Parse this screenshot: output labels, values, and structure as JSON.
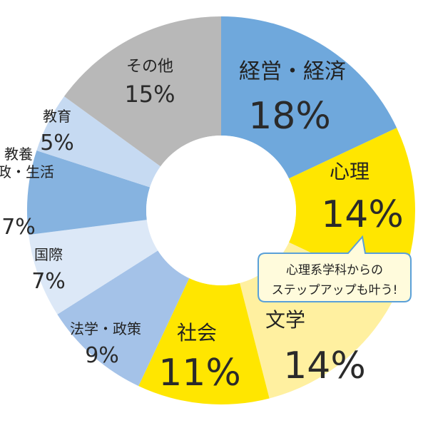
{
  "chart_data": {
    "type": "pie",
    "title": "",
    "start_angle_deg": 0,
    "direction": "clockwise",
    "unit": "%",
    "slices": [
      {
        "category": "経営・経済",
        "label_lines": [
          "経営・経済"
        ],
        "value": 18,
        "value_text": "18%",
        "color": "#6fa8dc"
      },
      {
        "category": "心理",
        "label_lines": [
          "心理"
        ],
        "value": 14,
        "value_text": "14%",
        "color": "#ffe600"
      },
      {
        "category": "文学",
        "label_lines": [
          "文学"
        ],
        "value": 14,
        "value_text": "14%",
        "color": "#fff0a0"
      },
      {
        "category": "社会",
        "label_lines": [
          "社会"
        ],
        "value": 11,
        "value_text": "11%",
        "color": "#ffe600"
      },
      {
        "category": "法学・政策",
        "label_lines": [
          "法学・政策"
        ],
        "value": 9,
        "value_text": "9%",
        "color": "#a4c2e8"
      },
      {
        "category": "国際",
        "label_lines": [
          "国際"
        ],
        "value": 7,
        "value_text": "7%",
        "color": "#dce8f7"
      },
      {
        "category": "教養家政・生活",
        "label_lines": [
          "教養",
          "家政・生活"
        ],
        "value": 7,
        "value_text": "7%",
        "color": "#86b3e0"
      },
      {
        "category": "教育",
        "label_lines": [
          "教育"
        ],
        "value": 5,
        "value_text": "5%",
        "color": "#c6daf2"
      },
      {
        "category": "その他",
        "label_lines": [
          "その他"
        ],
        "value": 15,
        "value_text": "15%",
        "color": "#b8b8b8"
      }
    ]
  },
  "callout": {
    "lines": [
      "心理系学科からの",
      "ステップアップも叶う!"
    ],
    "border_color": "#5aa0d8",
    "fill_color": "#fffbdc"
  }
}
